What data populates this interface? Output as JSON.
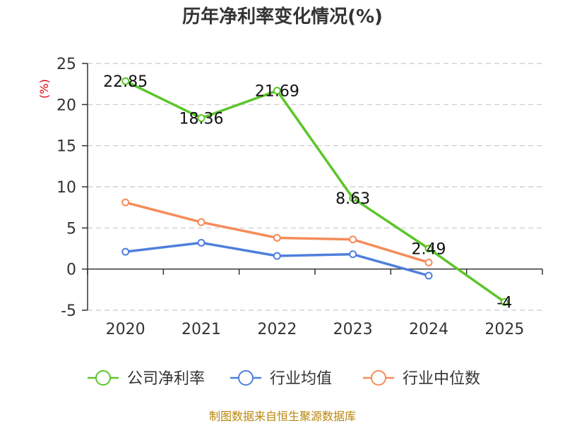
{
  "chart_data": {
    "type": "line",
    "title": "历年净利率变化情况(%)",
    "unit_label": "(%)",
    "categories": [
      "2020",
      "2021",
      "2022",
      "2023",
      "2024",
      "2025"
    ],
    "ylim": [
      -5,
      25
    ],
    "yticks": [
      "25",
      "20",
      "15",
      "10",
      "5",
      "0",
      "-5"
    ],
    "grid": true,
    "legend_position": "bottom",
    "series": [
      {
        "name": "公司净利率",
        "color": "#5cc52a",
        "values": [
          22.85,
          18.36,
          21.69,
          8.63,
          2.49,
          -4
        ],
        "labels": [
          "22.85",
          "18.36",
          "21.69",
          "8.63",
          "2.49",
          "-4"
        ]
      },
      {
        "name": "行业均值",
        "color": "#4f7fdc",
        "values": [
          2.1,
          3.2,
          1.6,
          1.8,
          -0.8,
          null
        ]
      },
      {
        "name": "行业中位数",
        "color": "#f58c5a",
        "values": [
          8.1,
          5.7,
          3.8,
          3.6,
          0.8,
          null
        ]
      }
    ],
    "source": "制图数据来自恒生聚源数据库"
  }
}
